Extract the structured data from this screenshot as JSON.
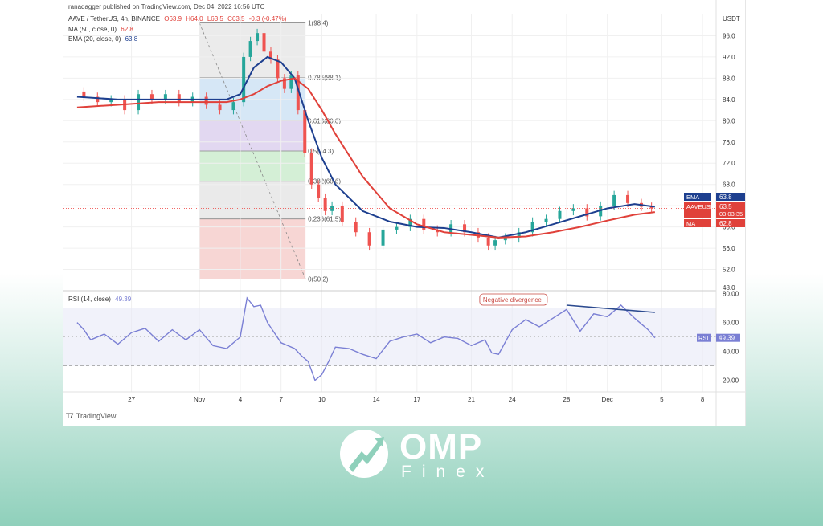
{
  "header": {
    "published": "ranadagger published on TradingView.com, Dec 04, 2022 16:56 UTC",
    "symbol": "AAVE / TetherUS, 4h, BINANCE",
    "ohlc": [
      "O63.9",
      "H64.0",
      "L63.5",
      "C63.5",
      "-0.3 (-0.47%)"
    ],
    "ma_label": "MA (50, close, 0)",
    "ma_value": "62.8",
    "ema_label": "EMA (20, close, 0)",
    "ema_value": "63.8",
    "rsi_label": "RSI (14, close)",
    "rsi_value": "49.39"
  },
  "tradingview_label": "TradingView",
  "brand": {
    "word": "OMP",
    "sub": "Finex"
  },
  "colors": {
    "ema": "#1d3f8f",
    "ma": "#e0413a",
    "rsi": "#7a7fd4",
    "up": "#26a69a",
    "down": "#ef5350",
    "divergence": "#2b4a8f"
  },
  "chart_data": [
    {
      "type": "line",
      "title": "AAVE / TetherUS, 4h, BINANCE",
      "y_unit": "USDT",
      "ylim": [
        48,
        100
      ],
      "y_ticks": [
        52,
        56,
        60,
        64,
        68,
        72,
        76,
        80,
        84,
        88,
        92,
        96
      ],
      "y_tick_labels": [
        "52.0",
        "56.0",
        "60.0",
        "64.0",
        "68.0",
        "72.0",
        "76.0",
        "80.0",
        "84.0",
        "88.0",
        "92.0",
        "96.0"
      ],
      "y_axis_partial_label": "48.0",
      "x_tick_labels": [
        "27",
        "Nov",
        "4",
        "7",
        "10",
        "14",
        "17",
        "21",
        "24",
        "28",
        "Dec",
        "5",
        "8"
      ],
      "x_ticks_day": [
        -5,
        0,
        3,
        6,
        9,
        13,
        16,
        20,
        23,
        27,
        30,
        34,
        37
      ],
      "xlim_day": [
        -10,
        38
      ],
      "series": [
        {
          "name": "AAVEUSDT",
          "x_day": [
            -9,
            -8,
            -7,
            -6,
            -5,
            -4,
            -3,
            -2,
            -1,
            0,
            1,
            2,
            3,
            3.5,
            4,
            4.5,
            5,
            5.5,
            6,
            6.5,
            7,
            7.5,
            8,
            8.5,
            9,
            9.5,
            10,
            11,
            12,
            13,
            14,
            15,
            16,
            17,
            18,
            19,
            20,
            21,
            21.5,
            22,
            23,
            24,
            25,
            26,
            27,
            28,
            29,
            30,
            31,
            32,
            33,
            33.5
          ],
          "values": [
            85.5,
            84.5,
            83.5,
            84,
            82,
            85,
            84,
            85,
            83.5,
            84.5,
            83,
            82,
            83.5,
            92,
            95,
            96.5,
            93,
            91.5,
            88,
            86,
            88.5,
            82,
            74,
            68,
            65.5,
            63,
            64,
            61,
            59,
            56.5,
            59.5,
            60,
            61.5,
            59.5,
            59,
            60.5,
            59,
            58,
            56.5,
            57.5,
            58,
            59,
            61,
            61.5,
            63,
            63.5,
            62,
            64,
            66,
            64.5,
            63.8,
            63.5
          ]
        },
        {
          "name": "EMA",
          "x_day": [
            -9,
            -6,
            -3,
            0,
            2,
            3,
            4,
            5,
            6,
            7,
            8,
            9,
            10,
            12,
            14,
            16,
            18,
            20,
            22,
            24,
            26,
            28,
            30,
            32,
            33.5
          ],
          "values": [
            84.5,
            84,
            84,
            84,
            84,
            85,
            90,
            92,
            91,
            88,
            80,
            73,
            68,
            63,
            61,
            60,
            59.8,
            59,
            58,
            59,
            60.5,
            62,
            63.5,
            64.3,
            63.8
          ]
        },
        {
          "name": "MA",
          "x_day": [
            -9,
            -6,
            -3,
            0,
            2,
            3,
            4,
            5,
            6,
            7,
            8,
            9,
            10,
            12,
            14,
            16,
            18,
            20,
            22,
            24,
            26,
            28,
            30,
            32,
            33.5
          ],
          "values": [
            82.5,
            83,
            83.5,
            83.5,
            83.5,
            84,
            85,
            86.5,
            87.5,
            88,
            86,
            82,
            77.5,
            69.5,
            63.5,
            60.5,
            59,
            58.5,
            58,
            58.2,
            59,
            60,
            61.2,
            62.3,
            62.8
          ]
        }
      ],
      "fibonacci": {
        "x_day_start": 0,
        "x_day_end": 7.8,
        "levels": [
          {
            "ratio_label": "1(98.4)",
            "value": 98.4,
            "band": "#e8e8e8"
          },
          {
            "ratio_label": "0.786(88.1)",
            "value": 88.1,
            "band": "#cfe3f4"
          },
          {
            "ratio_label": "0.618(80.0)",
            "value": 80.0,
            "band": "#ddd1ee"
          },
          {
            "ratio_label": "0.5(74.3)",
            "value": 74.3,
            "band": "#cdeccf"
          },
          {
            "ratio_label": "0.382(68.6)",
            "value": 68.6,
            "band": "#e6e6e6"
          },
          {
            "ratio_label": "0.236(61.5)",
            "value": 61.5,
            "band": "#f6cfcd"
          },
          {
            "ratio_label": "0(50.2)",
            "value": 50.2,
            "band": ""
          }
        ]
      },
      "price_labels": [
        {
          "name": "EMA",
          "value": "63.8",
          "color": "#1d3f8f"
        },
        {
          "name": "AAVEUSDT",
          "value": "63.5",
          "extra": "03:03:35",
          "color": "#e0413a"
        },
        {
          "name": "MA",
          "value": "62.8",
          "color": "#e0413a"
        }
      ]
    },
    {
      "type": "line",
      "title": "RSI (14, close)",
      "ylim": [
        12,
        82
      ],
      "y_ticks": [
        20,
        40,
        60,
        80
      ],
      "y_tick_labels": [
        "20.00",
        "40.00",
        "60.00",
        "80.00"
      ],
      "bands": [
        30,
        70
      ],
      "mid": 50,
      "series": [
        {
          "name": "RSI",
          "x_day": [
            -9,
            -8.5,
            -8,
            -7,
            -6,
            -5,
            -4,
            -3,
            -2,
            -1,
            0,
            1,
            2,
            3,
            3.5,
            4,
            4.5,
            5,
            6,
            7,
            7.5,
            8,
            8.5,
            9,
            9.5,
            10,
            11,
            12,
            13,
            14,
            15,
            16,
            17,
            18,
            19,
            20,
            21,
            21.5,
            22,
            23,
            24,
            25,
            26,
            27,
            28,
            29,
            30,
            31,
            32,
            33,
            33.5
          ],
          "values": [
            60,
            55,
            48,
            52,
            45,
            53,
            56,
            47,
            55,
            48,
            55,
            44,
            42,
            50,
            77,
            71,
            72,
            60,
            46,
            42,
            37,
            33,
            20,
            24,
            33,
            43,
            42,
            38,
            35,
            47,
            50,
            52,
            46,
            50,
            49,
            44,
            48,
            39,
            38,
            55,
            62,
            57,
            63,
            69,
            54,
            66,
            64,
            72,
            63,
            55,
            49.39
          ]
        }
      ],
      "annotation": {
        "text": "Negative divergence",
        "line_x_day": [
          27,
          33.5
        ],
        "line_values": [
          72,
          67
        ]
      }
    }
  ]
}
